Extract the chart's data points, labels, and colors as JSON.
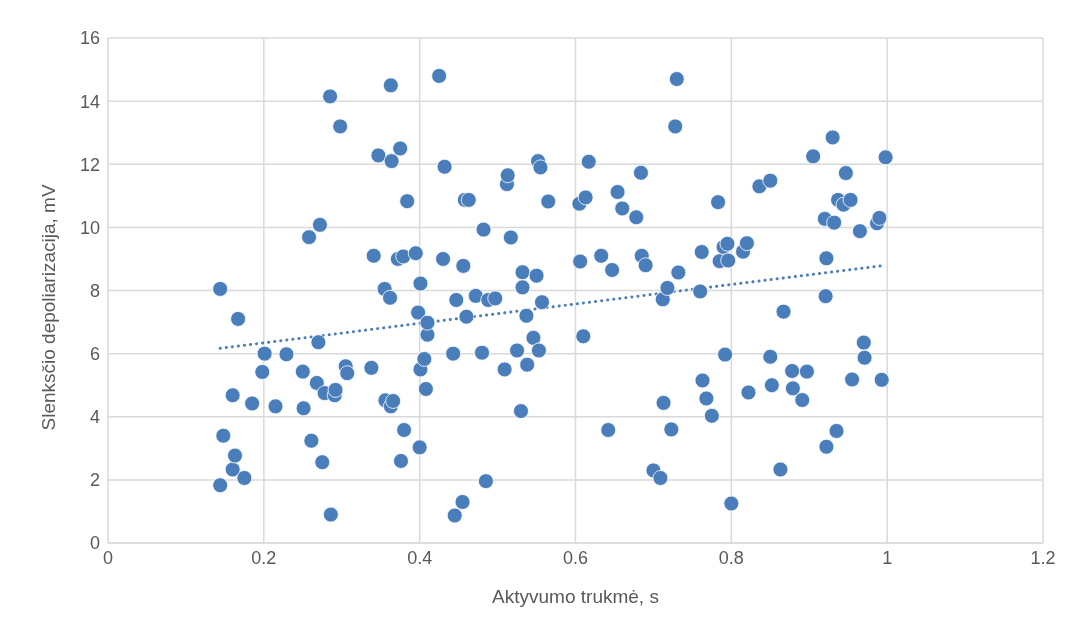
{
  "chart_data": {
    "type": "scatter",
    "xlabel": "Aktyvumo trukmė, s",
    "ylabel": "Slenksčio depoliarizacija, mV",
    "xlim": [
      0,
      1.2
    ],
    "xticks": [
      0,
      0.2,
      0.4,
      0.6,
      0.8,
      1,
      1.2
    ],
    "ylim": [
      0,
      16
    ],
    "yticks": [
      0,
      2,
      4,
      6,
      8,
      10,
      12,
      14,
      16
    ],
    "grid": true,
    "series": [
      {
        "color": "#4a7ebb",
        "marker": "circle",
        "x": [
          0.144,
          0.148,
          0.144,
          0.16,
          0.163,
          0.16,
          0.167,
          0.175,
          0.185,
          0.198,
          0.201,
          0.215,
          0.229,
          0.25,
          0.251,
          0.258,
          0.261,
          0.268,
          0.27,
          0.272,
          0.275,
          0.278,
          0.285,
          0.286,
          0.291,
          0.292,
          0.298,
          0.305,
          0.307,
          0.338,
          0.341,
          0.347,
          0.355,
          0.356,
          0.362,
          0.363,
          0.364,
          0.363,
          0.366,
          0.372,
          0.375,
          0.376,
          0.379,
          0.38,
          0.384,
          0.395,
          0.398,
          0.4,
          0.401,
          0.401,
          0.406,
          0.408,
          0.41,
          0.41,
          0.425,
          0.43,
          0.432,
          0.443,
          0.445,
          0.447,
          0.455,
          0.456,
          0.458,
          0.46,
          0.463,
          0.472,
          0.48,
          0.482,
          0.485,
          0.488,
          0.497,
          0.509,
          0.512,
          0.513,
          0.517,
          0.525,
          0.53,
          0.532,
          0.532,
          0.537,
          0.538,
          0.546,
          0.55,
          0.552,
          0.553,
          0.555,
          0.557,
          0.565,
          0.605,
          0.606,
          0.61,
          0.613,
          0.617,
          0.633,
          0.642,
          0.647,
          0.654,
          0.66,
          0.678,
          0.684,
          0.685,
          0.69,
          0.7,
          0.709,
          0.712,
          0.713,
          0.718,
          0.723,
          0.728,
          0.73,
          0.732,
          0.76,
          0.762,
          0.763,
          0.768,
          0.775,
          0.783,
          0.785,
          0.79,
          0.792,
          0.795,
          0.796,
          0.8,
          0.815,
          0.82,
          0.822,
          0.836,
          0.85,
          0.85,
          0.852,
          0.863,
          0.867,
          0.878,
          0.879,
          0.891,
          0.897,
          0.905,
          0.92,
          0.921,
          0.922,
          0.922,
          0.93,
          0.932,
          0.935,
          0.937,
          0.944,
          0.947,
          0.953,
          0.955,
          0.965,
          0.97,
          0.971,
          0.987,
          0.99,
          0.993,
          0.998
        ],
        "values": [
          8.05,
          3.4,
          1.83,
          2.33,
          2.77,
          4.68,
          7.1,
          2.06,
          4.42,
          5.42,
          6.0,
          4.33,
          5.98,
          5.43,
          4.27,
          9.69,
          3.24,
          5.07,
          6.36,
          10.08,
          2.56,
          4.75,
          14.15,
          0.9,
          4.68,
          4.85,
          13.2,
          5.6,
          5.38,
          5.55,
          9.1,
          12.28,
          8.05,
          4.52,
          7.77,
          14.5,
          12.1,
          4.33,
          4.5,
          9.0,
          12.5,
          2.6,
          9.08,
          3.58,
          10.83,
          9.18,
          7.3,
          3.03,
          5.5,
          8.22,
          5.83,
          4.88,
          6.6,
          6.98,
          14.8,
          9.0,
          11.92,
          6.0,
          0.87,
          7.7,
          1.3,
          8.78,
          10.87,
          7.17,
          10.87,
          7.83,
          6.03,
          9.93,
          1.96,
          7.7,
          7.75,
          5.5,
          11.37,
          11.65,
          9.68,
          6.1,
          4.18,
          8.58,
          8.1,
          7.2,
          5.65,
          6.5,
          8.47,
          12.1,
          6.1,
          11.9,
          7.63,
          10.82,
          10.75,
          8.92,
          6.55,
          10.95,
          12.08,
          9.1,
          3.58,
          8.65,
          11.12,
          10.6,
          10.32,
          11.73,
          9.1,
          8.8,
          2.3,
          2.06,
          7.72,
          4.44,
          8.08,
          3.6,
          13.2,
          14.7,
          8.57,
          7.97,
          9.22,
          5.15,
          4.58,
          4.03,
          10.8,
          8.93,
          9.38,
          5.97,
          9.48,
          8.95,
          1.25,
          9.23,
          9.5,
          4.77,
          11.3,
          11.48,
          5.9,
          5.0,
          2.33,
          7.33,
          5.45,
          4.9,
          4.53,
          5.43,
          12.25,
          10.27,
          7.82,
          9.02,
          3.05,
          12.85,
          10.15,
          3.55,
          10.87,
          10.72,
          11.72,
          10.87,
          5.18,
          9.88,
          6.35,
          5.87,
          10.13,
          10.3,
          5.17,
          12.22
        ]
      },
      {
        "type": "line",
        "color": "#4a7ebb",
        "line_style": "dotted",
        "marker": "none",
        "x": [
          0.144,
          0.998
        ],
        "values": [
          6.17,
          8.8
        ]
      }
    ]
  }
}
